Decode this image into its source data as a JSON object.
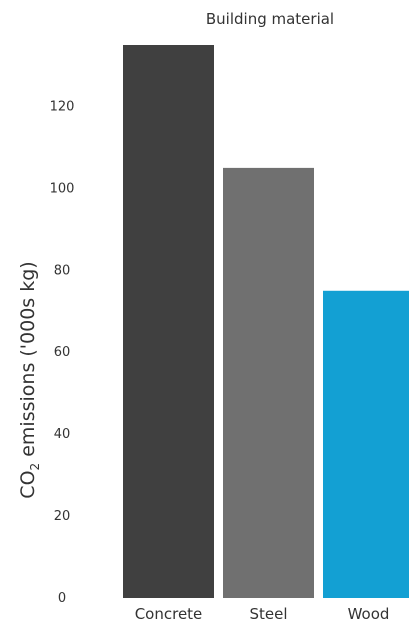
{
  "chart_data": {
    "type": "bar",
    "title": "Building material",
    "xlabel": "",
    "ylabel": "CO2 emissions ('000s kg)",
    "ylabel_parts": {
      "pre": "CO",
      "sub": "2",
      "post": " emissions ('000s kg)"
    },
    "categories": [
      "Concrete",
      "Steel",
      "Wood"
    ],
    "values": [
      135,
      105,
      75
    ],
    "colors": [
      "#404040",
      "#707070",
      "#13a0d3"
    ],
    "yticks": [
      0,
      20,
      40,
      60,
      80,
      100,
      120
    ],
    "ylim": [
      0,
      135
    ],
    "grid": false,
    "legend": "none"
  }
}
